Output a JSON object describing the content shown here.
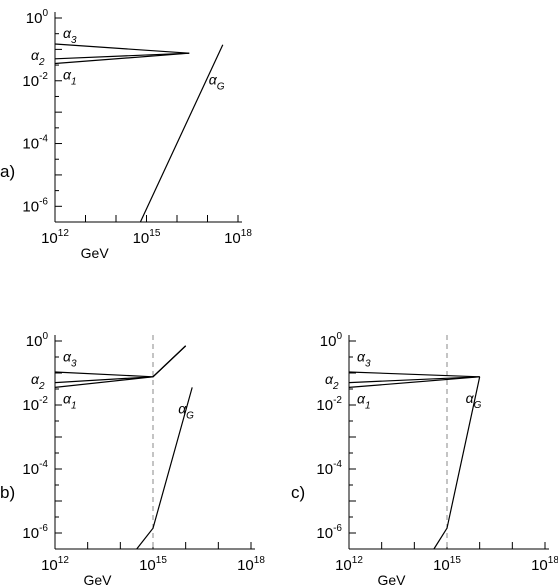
{
  "chart_data": [
    {
      "type": "line",
      "panel_label": "a)",
      "xlabel": "GeV",
      "x_scale": "log10",
      "y_scale": "log10",
      "xlim": [
        12,
        18
      ],
      "ylim": [
        -6.5,
        0
      ],
      "x_ticks": [
        {
          "base": "10",
          "exp": "12"
        },
        {
          "base": "10",
          "exp": "15"
        },
        {
          "base": "10",
          "exp": "18"
        }
      ],
      "y_ticks": [
        {
          "base": "10",
          "exp": "0"
        },
        {
          "base": "10",
          "exp": "-2"
        },
        {
          "base": "10",
          "exp": "-4"
        },
        {
          "base": "10",
          "exp": "-6"
        }
      ],
      "dashed_line_x": null,
      "series": [
        {
          "name": "α3",
          "sym": "α",
          "sub": "3",
          "x": [
            12,
            16.4
          ],
          "y": [
            -0.83,
            -1.12
          ]
        },
        {
          "name": "α2",
          "sym": "α",
          "sub": "2",
          "x": [
            12,
            16.4
          ],
          "y": [
            -1.3,
            -1.12
          ]
        },
        {
          "name": "α1",
          "sym": "α",
          "sub": "1",
          "x": [
            12,
            16.4
          ],
          "y": [
            -1.45,
            -1.12
          ]
        },
        {
          "name": "αG",
          "sym": "α",
          "sub": "G",
          "x": [
            14.8,
            17.5
          ],
          "y": [
            -6.5,
            -0.85
          ]
        }
      ]
    },
    {
      "type": "line",
      "panel_label": "b)",
      "xlabel": "GeV",
      "x_scale": "log10",
      "y_scale": "log10",
      "xlim": [
        12,
        18
      ],
      "ylim": [
        -6.5,
        0
      ],
      "x_ticks": [
        {
          "base": "10",
          "exp": "12"
        },
        {
          "base": "10",
          "exp": "15"
        },
        {
          "base": "10",
          "exp": "18"
        }
      ],
      "y_ticks": [
        {
          "base": "10",
          "exp": "0"
        },
        {
          "base": "10",
          "exp": "-2"
        },
        {
          "base": "10",
          "exp": "-4"
        },
        {
          "base": "10",
          "exp": "-6"
        }
      ],
      "dashed_line_x": 15,
      "series": [
        {
          "name": "α3",
          "sym": "α",
          "sub": "3",
          "x": [
            12,
            15,
            16
          ],
          "y": [
            -0.97,
            -1.12,
            -0.15
          ]
        },
        {
          "name": "α2",
          "sym": "α",
          "sub": "2",
          "x": [
            12,
            15,
            16
          ],
          "y": [
            -1.3,
            -1.12,
            -0.15
          ]
        },
        {
          "name": "α1",
          "sym": "α",
          "sub": "1",
          "x": [
            12,
            15,
            16
          ],
          "y": [
            -1.45,
            -1.12,
            -0.15
          ]
        },
        {
          "name": "αG",
          "sym": "α",
          "sub": "G",
          "x": [
            14.5,
            15,
            16.2
          ],
          "y": [
            -6.5,
            -5.85,
            -1.45
          ]
        }
      ]
    },
    {
      "type": "line",
      "panel_label": "c)",
      "xlabel": "GeV",
      "x_scale": "log10",
      "y_scale": "log10",
      "xlim": [
        12,
        18
      ],
      "ylim": [
        -6.5,
        0
      ],
      "x_ticks": [
        {
          "base": "10",
          "exp": "12"
        },
        {
          "base": "10",
          "exp": "15"
        },
        {
          "base": "10",
          "exp": "18"
        }
      ],
      "y_ticks": [
        {
          "base": "10",
          "exp": "0"
        },
        {
          "base": "10",
          "exp": "-2"
        },
        {
          "base": "10",
          "exp": "-4"
        },
        {
          "base": "10",
          "exp": "-6"
        }
      ],
      "dashed_line_x": 15,
      "series": [
        {
          "name": "α3",
          "sym": "α",
          "sub": "3",
          "x": [
            12,
            16
          ],
          "y": [
            -0.97,
            -1.12
          ]
        },
        {
          "name": "α2",
          "sym": "α",
          "sub": "2",
          "x": [
            12,
            16
          ],
          "y": [
            -1.3,
            -1.12
          ]
        },
        {
          "name": "α1",
          "sym": "α",
          "sub": "1",
          "x": [
            12,
            16
          ],
          "y": [
            -1.45,
            -1.12
          ]
        },
        {
          "name": "αG",
          "sym": "α",
          "sub": "G",
          "x": [
            14.6,
            15,
            16
          ],
          "y": [
            -6.5,
            -5.85,
            -1.12
          ]
        }
      ]
    }
  ]
}
